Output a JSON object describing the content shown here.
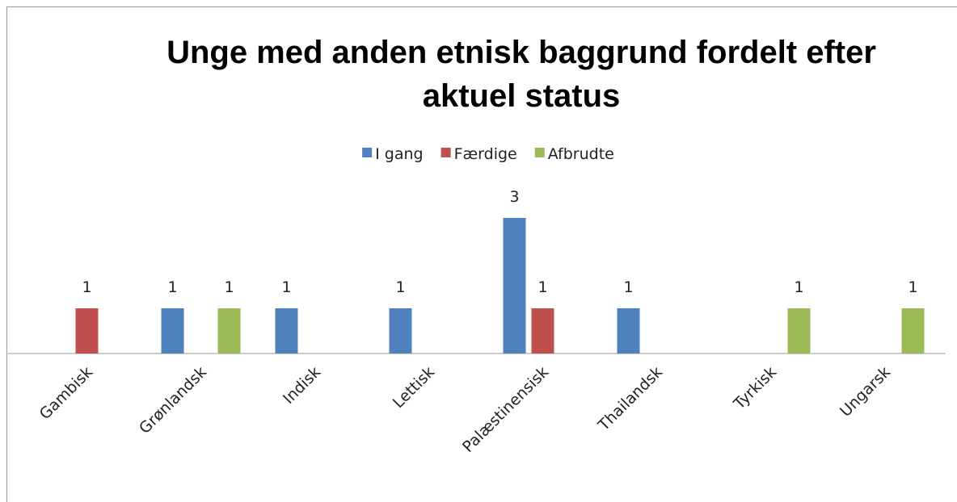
{
  "chart_data": {
    "type": "bar",
    "title": "Unge med anden etnisk baggrund fordelt efter aktuel status",
    "categories": [
      "Gambisk",
      "Grønlandsk",
      "Indisk",
      "Lettisk",
      "Palæstinensisk",
      "Thailandsk",
      "Tyrkisk",
      "Ungarsk"
    ],
    "series": [
      {
        "name": "I gang",
        "color": "#4f81bd",
        "values": [
          null,
          1,
          1,
          1,
          3,
          1,
          null,
          null
        ]
      },
      {
        "name": "Færdige",
        "color": "#c0504d",
        "values": [
          1,
          null,
          null,
          null,
          1,
          null,
          null,
          null
        ]
      },
      {
        "name": "Afbrudte",
        "color": "#9bbb59",
        "values": [
          null,
          1,
          null,
          null,
          null,
          null,
          1,
          1
        ]
      }
    ],
    "legend": "top",
    "data_labels": true
  }
}
